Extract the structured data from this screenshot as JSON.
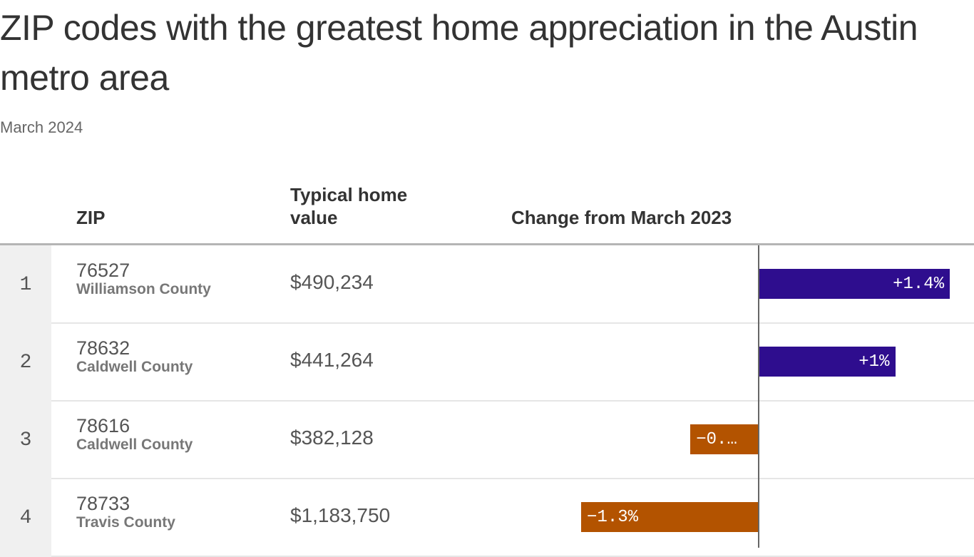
{
  "title": "ZIP codes with the greatest home appreciation in the Austin metro area",
  "subtitle": "March 2024",
  "columns": {
    "zip": "ZIP",
    "value": "Typical home value",
    "change": "Change from March 2023"
  },
  "colors": {
    "positive": "#2e0d8e",
    "negative": "#b35300"
  },
  "chart_data": {
    "type": "bar",
    "orientation": "horizontal",
    "categories": [
      "76527",
      "78632",
      "78616",
      "78733"
    ],
    "values": [
      1.4,
      1.0,
      -0.5,
      -1.3
    ],
    "unit": "%",
    "xlim": [
      -1.6,
      1.6
    ]
  },
  "rows": [
    {
      "rank": "1",
      "zip": "76527",
      "county": "Williamson County",
      "value": "$490,234",
      "change": 1.4,
      "label": "+1.4%"
    },
    {
      "rank": "2",
      "zip": "78632",
      "county": "Caldwell County",
      "value": "$441,264",
      "change": 1.0,
      "label": "+1%"
    },
    {
      "rank": "3",
      "zip": "78616",
      "county": "Caldwell County",
      "value": "$382,128",
      "change": -0.5,
      "label": "−0.…"
    },
    {
      "rank": "4",
      "zip": "78733",
      "county": "Travis County",
      "value": "$1,183,750",
      "change": -1.3,
      "label": "−1.3%"
    }
  ]
}
